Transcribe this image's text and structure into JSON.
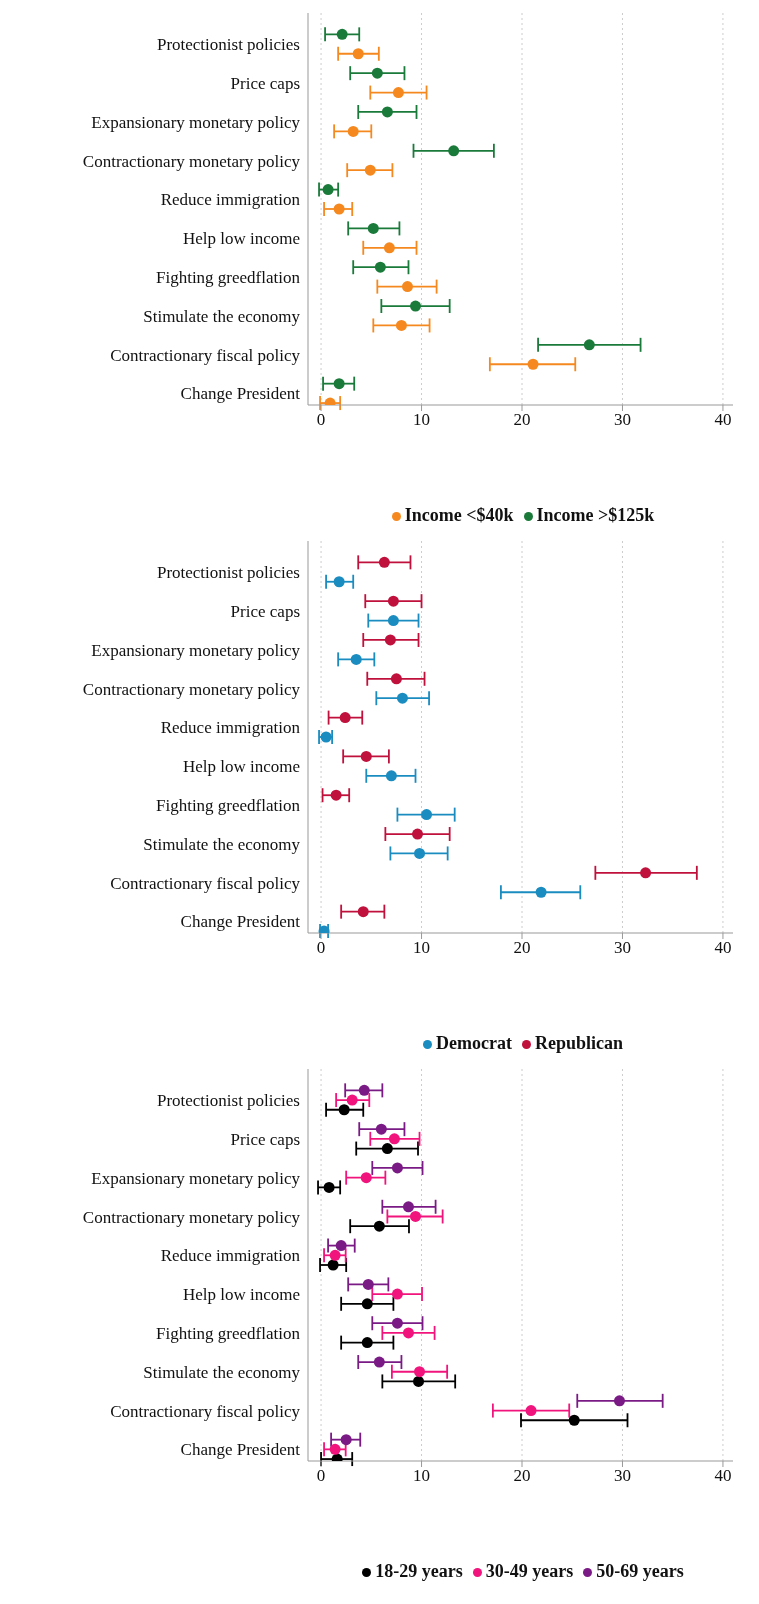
{
  "chart_data": [
    {
      "type": "scatter",
      "orientation": "horizontal",
      "categories": [
        "Protectionist policies",
        "Price caps",
        "Expansionary monetary policy",
        "Contractionary monetary policy",
        "Reduce immigration",
        "Help low income",
        "Fighting greedflation",
        "Stimulate the economy",
        "Contractionary fiscal policy",
        "Change President"
      ],
      "series": [
        {
          "name": "Income <$40k",
          "color": "#f5891f",
          "values": [
            3.7,
            7.7,
            3.2,
            4.9,
            1.8,
            6.8,
            8.6,
            8.0,
            21.1,
            0.9
          ],
          "errors": [
            [
              1.7,
              5.75
            ],
            [
              4.9,
              10.5
            ],
            [
              1.3,
              5.0
            ],
            [
              2.6,
              7.1
            ],
            [
              0.3,
              3.1
            ],
            [
              4.2,
              9.5
            ],
            [
              5.6,
              11.5
            ],
            [
              5.2,
              10.8
            ],
            [
              16.8,
              25.3
            ],
            [
              -0.1,
              1.9
            ]
          ]
        },
        {
          "name": "Income >$125k",
          "color": "#1a7a3a",
          "values": [
            2.1,
            5.6,
            6.6,
            13.2,
            0.7,
            5.2,
            5.9,
            9.4,
            26.7,
            1.8
          ],
          "errors": [
            [
              0.4,
              3.8
            ],
            [
              2.9,
              8.3
            ],
            [
              3.7,
              9.5
            ],
            [
              9.2,
              17.2
            ],
            [
              -0.2,
              1.7
            ],
            [
              2.7,
              7.8
            ],
            [
              3.2,
              8.7
            ],
            [
              6.0,
              12.8
            ],
            [
              21.6,
              31.8
            ],
            [
              0.2,
              3.3
            ]
          ]
        }
      ],
      "xlim": [
        -1.3,
        41
      ],
      "xticks": [
        0,
        10,
        20,
        30,
        40
      ],
      "grid": "x",
      "legend": "bottom",
      "marker": "circle"
    },
    {
      "type": "scatter",
      "orientation": "horizontal",
      "categories": [
        "Protectionist policies",
        "Price caps",
        "Expansionary monetary policy",
        "Contractionary monetary policy",
        "Reduce immigration",
        "Help low income",
        "Fighting greedflation",
        "Stimulate the economy",
        "Contractionary fiscal policy",
        "Change President"
      ],
      "series": [
        {
          "name": "Democrat",
          "color": "#1a8cc0",
          "values": [
            1.8,
            7.2,
            3.5,
            8.1,
            0.5,
            7.0,
            10.5,
            9.8,
            21.9,
            0.3
          ],
          "errors": [
            [
              0.5,
              3.2
            ],
            [
              4.7,
              9.7
            ],
            [
              1.7,
              5.3
            ],
            [
              5.5,
              10.75
            ],
            [
              -0.2,
              1.1
            ],
            [
              4.5,
              9.4
            ],
            [
              7.6,
              13.3
            ],
            [
              6.9,
              12.6
            ],
            [
              17.9,
              25.8
            ],
            [
              -0.1,
              0.7
            ]
          ]
        },
        {
          "name": "Republican",
          "color": "#c0103c",
          "values": [
            6.3,
            7.2,
            6.9,
            7.5,
            2.4,
            4.5,
            1.5,
            9.6,
            32.3,
            4.2
          ],
          "errors": [
            [
              3.7,
              8.9
            ],
            [
              4.4,
              10.0
            ],
            [
              4.2,
              9.7
            ],
            [
              4.6,
              10.3
            ],
            [
              0.75,
              4.1
            ],
            [
              2.2,
              6.75
            ],
            [
              0.15,
              2.8
            ],
            [
              6.4,
              12.8
            ],
            [
              27.3,
              37.4
            ],
            [
              2.0,
              6.3
            ]
          ]
        }
      ],
      "xlim": [
        -1.3,
        41
      ],
      "xticks": [
        0,
        10,
        20,
        30,
        40
      ],
      "grid": "x",
      "legend": "bottom",
      "marker": "circle"
    },
    {
      "type": "scatter",
      "orientation": "horizontal",
      "categories": [
        "Protectionist policies",
        "Price caps",
        "Expansionary monetary policy",
        "Contractionary monetary policy",
        "Reduce immigration",
        "Help low income",
        "Fighting greedflation",
        "Stimulate the economy",
        "Contractionary fiscal policy",
        "Change President"
      ],
      "series": [
        {
          "name": "18-29 years",
          "color": "#000000",
          "values": [
            2.3,
            6.6,
            0.8,
            5.8,
            1.2,
            4.6,
            4.6,
            9.7,
            25.2,
            1.6
          ],
          "errors": [
            [
              0.5,
              4.2
            ],
            [
              3.5,
              9.65
            ],
            [
              -0.3,
              1.9
            ],
            [
              2.9,
              8.75
            ],
            [
              -0.1,
              2.5
            ],
            [
              2.0,
              7.2
            ],
            [
              2.0,
              7.2
            ],
            [
              6.1,
              13.35
            ],
            [
              19.9,
              30.5
            ],
            [
              0.0,
              3.1
            ]
          ]
        },
        {
          "name": "30-49 years",
          "color": "#f0147c",
          "values": [
            3.1,
            7.3,
            4.5,
            9.4,
            1.4,
            7.6,
            8.7,
            9.8,
            20.9,
            1.4
          ],
          "errors": [
            [
              1.5,
              4.8
            ],
            [
              4.9,
              9.8
            ],
            [
              2.5,
              6.4
            ],
            [
              6.6,
              12.1
            ],
            [
              0.3,
              2.45
            ],
            [
              5.1,
              10.05
            ],
            [
              6.1,
              11.3
            ],
            [
              7.05,
              12.55
            ],
            [
              17.1,
              24.7
            ],
            [
              0.3,
              2.45
            ]
          ]
        },
        {
          "name": "50-69 years",
          "color": "#7a1a85",
          "values": [
            4.3,
            6.0,
            7.6,
            8.7,
            2.0,
            4.7,
            7.6,
            5.8,
            29.7,
            2.5
          ],
          "errors": [
            [
              2.4,
              6.1
            ],
            [
              3.8,
              8.3
            ],
            [
              5.1,
              10.1
            ],
            [
              6.1,
              11.4
            ],
            [
              0.7,
              3.35
            ],
            [
              2.7,
              6.7
            ],
            [
              5.1,
              10.1
            ],
            [
              3.7,
              8.0
            ],
            [
              25.5,
              34.0
            ],
            [
              1.0,
              3.9
            ]
          ]
        }
      ],
      "xlim": [
        -1.3,
        41
      ],
      "xticks": [
        0,
        10,
        20,
        30,
        40
      ],
      "grid": "x",
      "legend": "bottom",
      "marker": "circle"
    }
  ]
}
